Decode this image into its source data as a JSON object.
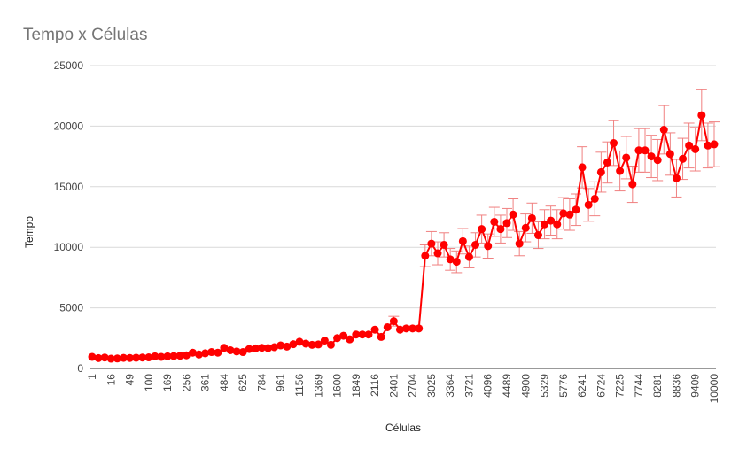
{
  "chart_data": {
    "type": "line",
    "title": "Tempo x Células",
    "xlabel": "Células",
    "ylabel": "Tempo",
    "ylim": [
      0,
      25000
    ],
    "yticks": [
      "0",
      "5000",
      "10000",
      "15000",
      "20000",
      "25000"
    ],
    "grid": true,
    "legend": "none",
    "error_bars": true,
    "colors": {
      "series": "#ff0000",
      "error_bar": "#f08080",
      "grid": "#d9d9d9"
    },
    "x": [
      "1",
      "4",
      "9",
      "16",
      "25",
      "36",
      "49",
      "64",
      "81",
      "100",
      "121",
      "144",
      "169",
      "196",
      "225",
      "256",
      "289",
      "324",
      "361",
      "400",
      "441",
      "484",
      "529",
      "576",
      "625",
      "676",
      "729",
      "784",
      "841",
      "900",
      "961",
      "1024",
      "1089",
      "1156",
      "1225",
      "1296",
      "1369",
      "1444",
      "1521",
      "1600",
      "1681",
      "1764",
      "1849",
      "1936",
      "2025",
      "2116",
      "2209",
      "2304",
      "2401",
      "2500",
      "2601",
      "2704",
      "2809",
      "2916",
      "3025",
      "3136",
      "3249",
      "3364",
      "3481",
      "3600",
      "3721",
      "3844",
      "3969",
      "4096",
      "4225",
      "4356",
      "4489",
      "4624",
      "4761",
      "4900",
      "5041",
      "5184",
      "5329",
      "5476",
      "5625",
      "5776",
      "5929",
      "6084",
      "6241",
      "6400",
      "6561",
      "6724",
      "6889",
      "7056",
      "7225",
      "7396",
      "7569",
      "7744",
      "7921",
      "8100",
      "8281",
      "8464",
      "8649",
      "8836",
      "9025",
      "9216",
      "9409",
      "9604",
      "9801",
      "10000"
    ],
    "series": [
      {
        "values": [
          950,
          850,
          900,
          800,
          820,
          870,
          860,
          880,
          900,
          910,
          1000,
          950,
          1000,
          1020,
          1050,
          1080,
          1300,
          1150,
          1250,
          1350,
          1300,
          1700,
          1500,
          1400,
          1350,
          1600,
          1650,
          1700,
          1680,
          1750,
          1900,
          1800,
          2000,
          2200,
          2050,
          1950,
          1980,
          2300,
          1950,
          2500,
          2700,
          2400,
          2800,
          2800,
          2800,
          3200,
          2600,
          3400,
          3900,
          3200,
          3300,
          3300,
          3300,
          9300,
          10300,
          9500,
          10200,
          9000,
          8800,
          10500,
          9200,
          10200,
          11500,
          10100,
          12100,
          11500,
          12000,
          12700,
          10300,
          11600,
          12400,
          11000,
          11900,
          12200,
          11900,
          12800,
          12700,
          13100,
          16600,
          13500,
          14000,
          16200,
          17000,
          18600,
          16300,
          17400,
          15200,
          18000,
          18000,
          17500,
          17200,
          19700,
          17700,
          15700,
          17300,
          18400,
          18100,
          20900,
          18400,
          18500
        ],
        "errors": [
          0,
          0,
          0,
          0,
          0,
          0,
          0,
          0,
          0,
          0,
          0,
          0,
          0,
          0,
          0,
          0,
          0,
          0,
          0,
          0,
          0,
          0,
          0,
          0,
          0,
          0,
          0,
          0,
          0,
          0,
          0,
          0,
          0,
          0,
          0,
          0,
          0,
          0,
          0,
          0,
          0,
          0,
          0,
          0,
          0,
          0,
          0,
          0,
          400,
          0,
          0,
          0,
          0,
          900,
          1000,
          950,
          1000,
          900,
          900,
          1050,
          900,
          1000,
          1150,
          1000,
          1200,
          1150,
          1200,
          1300,
          1000,
          1150,
          1250,
          1100,
          1200,
          1200,
          1200,
          1300,
          1300,
          1300,
          1700,
          1350,
          1400,
          1650,
          1700,
          1850,
          1650,
          1750,
          1500,
          1800,
          1800,
          1750,
          1700,
          2000,
          1750,
          1550,
          1700,
          1850,
          1800,
          2100,
          1850,
          1850
        ]
      }
    ]
  }
}
